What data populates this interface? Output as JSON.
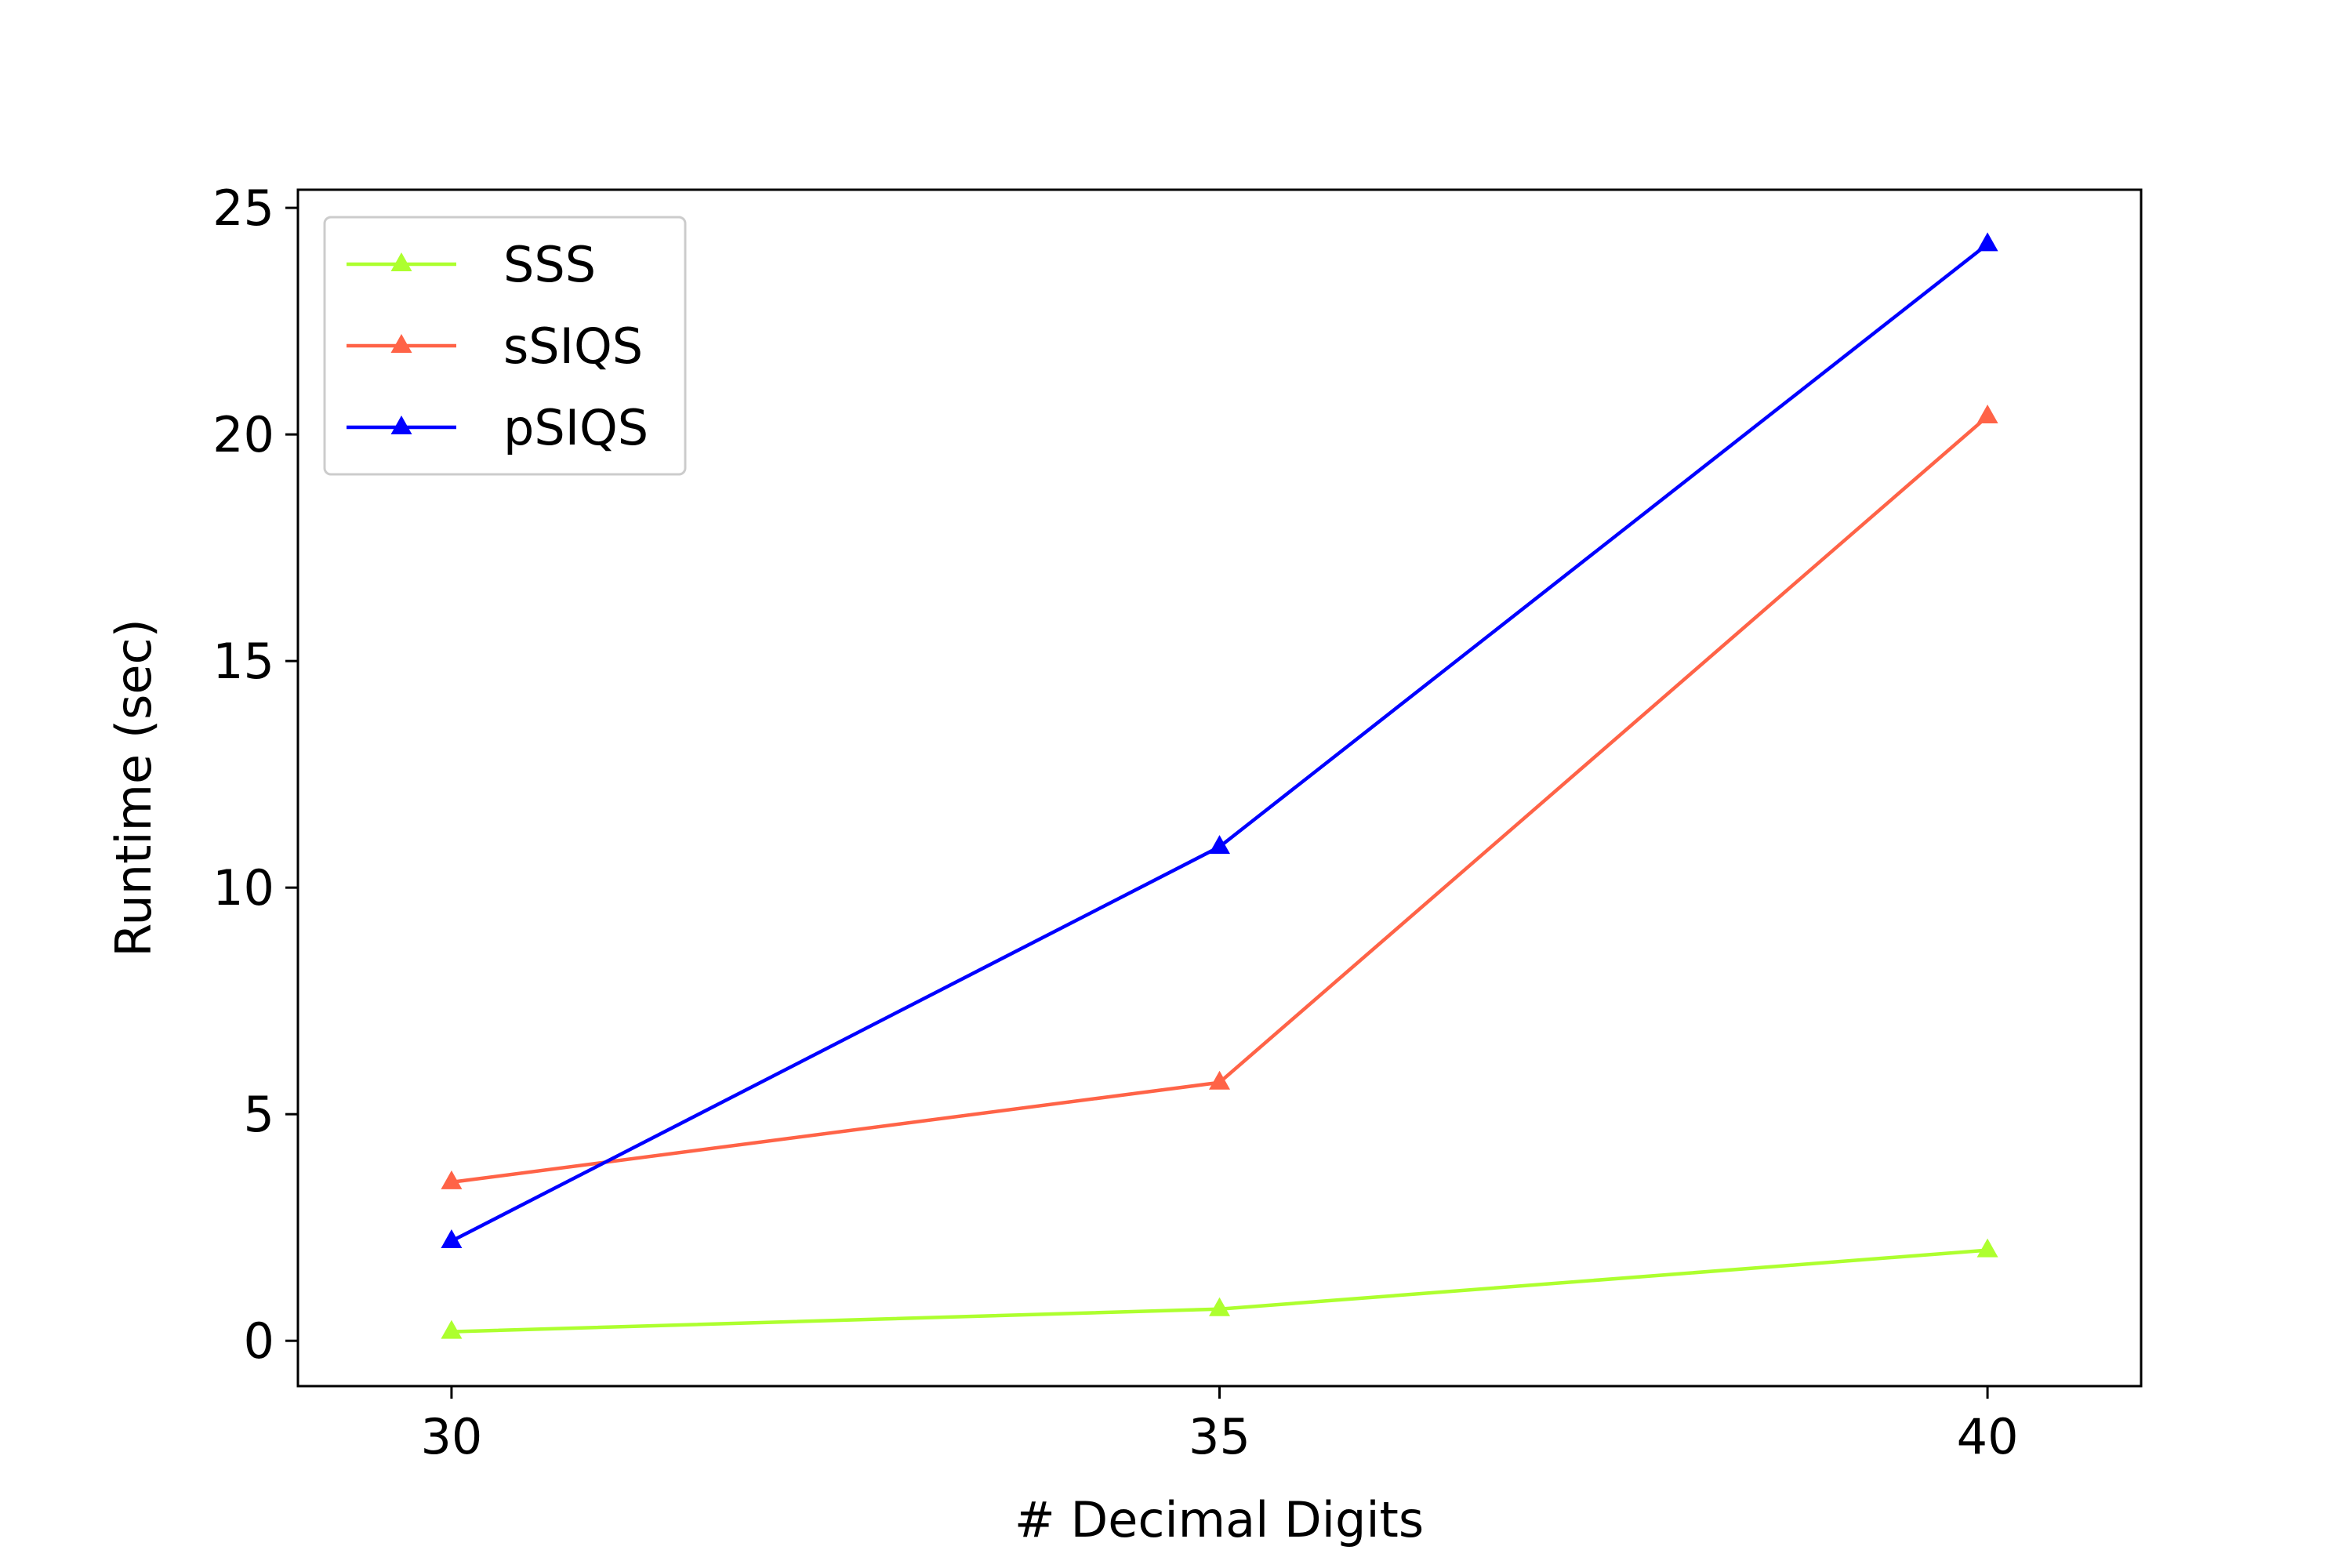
{
  "chart_data": {
    "type": "line",
    "title": "",
    "xlabel": "# Decimal Digits",
    "ylabel": "Runtime (sec)",
    "x": [
      30,
      35,
      40
    ],
    "xlim": [
      29,
      41
    ],
    "ylim": [
      -1,
      25.4
    ],
    "xticks": [
      30,
      35,
      40
    ],
    "yticks": [
      0,
      5,
      10,
      15,
      20,
      25
    ],
    "grid": false,
    "legend_position": "top-left",
    "marker": "triangle",
    "series": [
      {
        "name": "SSS",
        "color": "#adff2f",
        "values": [
          0.2,
          0.7,
          2.0
        ]
      },
      {
        "name": "sSIQS",
        "color": "#ff6347",
        "values": [
          3.5,
          5.7,
          20.4
        ]
      },
      {
        "name": "pSIQS",
        "color": "#0000ff",
        "values": [
          2.2,
          10.9,
          24.2
        ]
      }
    ]
  }
}
